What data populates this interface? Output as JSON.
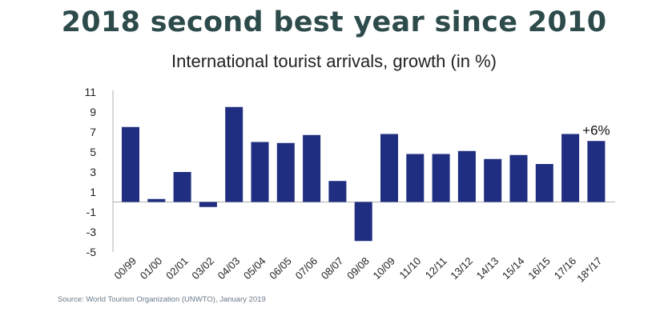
{
  "header": {
    "title": "2018 second best year since 2010",
    "subtitle": "International tourist arrivals, growth (in %)"
  },
  "source": "Source: World Tourism Organization (UNWTO), January 2019",
  "colors": {
    "bar": "#1f2e80",
    "axis": "#b0b0b0",
    "title": "#2e4b4b"
  },
  "chart_data": {
    "type": "bar",
    "title": "2018 second best year since 2010",
    "subtitle": "International tourist arrivals, growth (in %)",
    "categories": [
      "00/99",
      "01/00",
      "02/01",
      "03/02",
      "04/03",
      "05/04",
      "06/05",
      "07/06",
      "08/07",
      "09/08",
      "10/09",
      "11/10",
      "12/11",
      "13/12",
      "14/13",
      "15/14",
      "16/15",
      "17/16",
      "18*/17"
    ],
    "values": [
      7.5,
      0.3,
      3.0,
      -0.5,
      9.5,
      6.0,
      5.9,
      6.7,
      2.1,
      -3.9,
      6.8,
      4.8,
      4.8,
      5.1,
      4.3,
      4.7,
      3.8,
      6.8,
      6.1
    ],
    "yticks": [
      11,
      9,
      7,
      5,
      3,
      1,
      -1,
      -3,
      -5
    ],
    "ylim": [
      -5,
      11
    ],
    "xlabel": "",
    "ylabel": "",
    "annotation": {
      "category": "18*/17",
      "text": "+6%"
    },
    "grid": false,
    "legend": "none"
  }
}
